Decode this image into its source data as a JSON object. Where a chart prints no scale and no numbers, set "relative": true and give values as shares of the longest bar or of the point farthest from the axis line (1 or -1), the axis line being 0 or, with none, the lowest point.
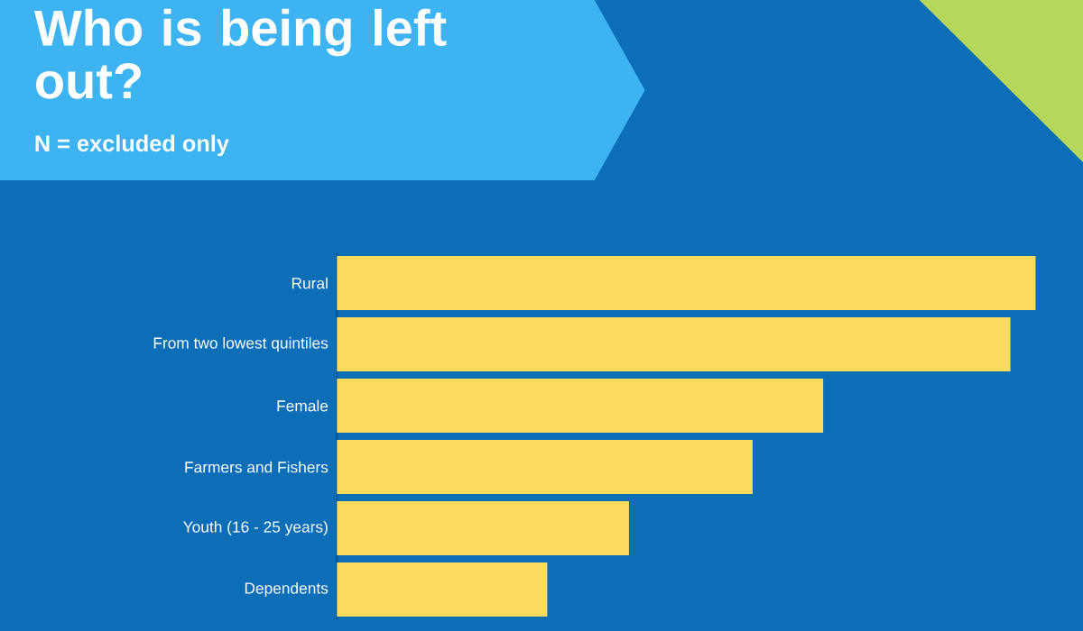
{
  "chart_data": {
    "type": "bar",
    "orientation": "horizontal",
    "relative": true,
    "title": "Who is being left out?",
    "subtitle": "N = excluded only",
    "categories": [
      "Rural",
      "From two lowest quintiles",
      "Female",
      "Farmers and Fishers",
      "Youth (16 - 25 years)",
      "Dependents"
    ],
    "values": [
      1,
      0.964,
      0.696,
      0.595,
      0.418,
      0.301
    ],
    "color": "#fcdc5f"
  }
}
